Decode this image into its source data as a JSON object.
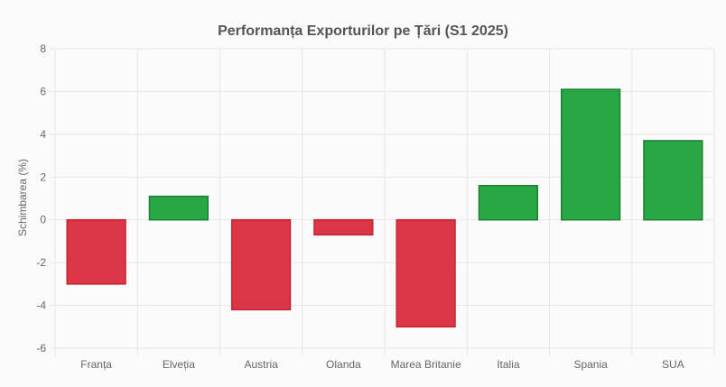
{
  "chart_data": {
    "type": "bar",
    "title": "Performanța Exporturilor pe Țări (S1 2025)",
    "xlabel": "",
    "ylabel": "Schimbarea (%)",
    "categories": [
      "Franța",
      "Elveția",
      "Austria",
      "Olanda",
      "Marea Britanie",
      "Italia",
      "Spania",
      "SUA"
    ],
    "values": [
      -3.0,
      1.1,
      -4.2,
      -0.7,
      -5.0,
      1.6,
      6.1,
      3.7
    ],
    "ylim": [
      -6,
      8
    ],
    "yticks": [
      -6,
      -4,
      -2,
      0,
      2,
      4,
      6,
      8
    ],
    "grid": true,
    "legend": "none",
    "colors": {
      "positive_fill": "#28a745",
      "positive_stroke": "#1e7e34",
      "negative_fill": "#dc3545",
      "negative_stroke": "#c82333",
      "grid": "#e6e6e6"
    }
  }
}
